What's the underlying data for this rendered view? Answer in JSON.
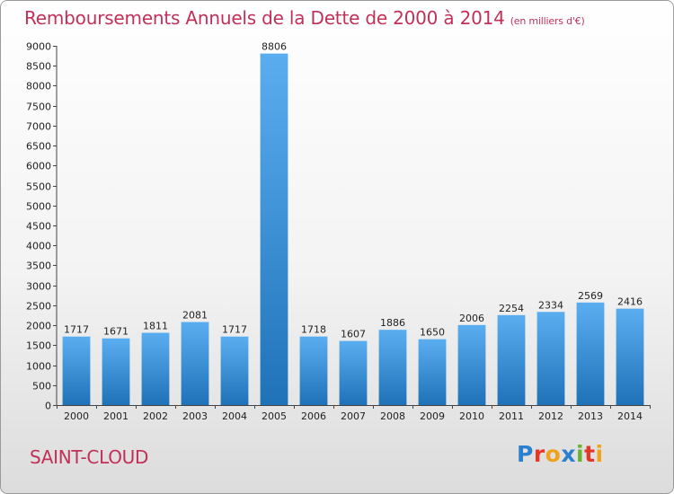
{
  "header": {
    "title": "Remboursements Annuels de la Dette de 2000 à 2014",
    "unit": "(en milliers d'€)"
  },
  "footer": {
    "city": "SAINT-CLOUD",
    "logo": "Proxiti"
  },
  "colors": {
    "title": "#c2305a",
    "bar_light": "#5aaef0",
    "bar_dark": "#1f72b8"
  },
  "chart_data": {
    "type": "bar",
    "title": "Remboursements Annuels de la Dette de 2000 à 2014",
    "xlabel": "",
    "ylabel": "",
    "categories": [
      "2000",
      "2001",
      "2002",
      "2003",
      "2004",
      "2005",
      "2006",
      "2007",
      "2008",
      "2009",
      "2010",
      "2011",
      "2012",
      "2013",
      "2014"
    ],
    "values": [
      1717,
      1671,
      1811,
      2081,
      1717,
      8806,
      1718,
      1607,
      1886,
      1650,
      2006,
      2254,
      2334,
      2569,
      2416
    ],
    "ylim": [
      0,
      9000
    ],
    "ytick_step": 500,
    "grid": false,
    "legend": "none",
    "data_labels": true
  }
}
